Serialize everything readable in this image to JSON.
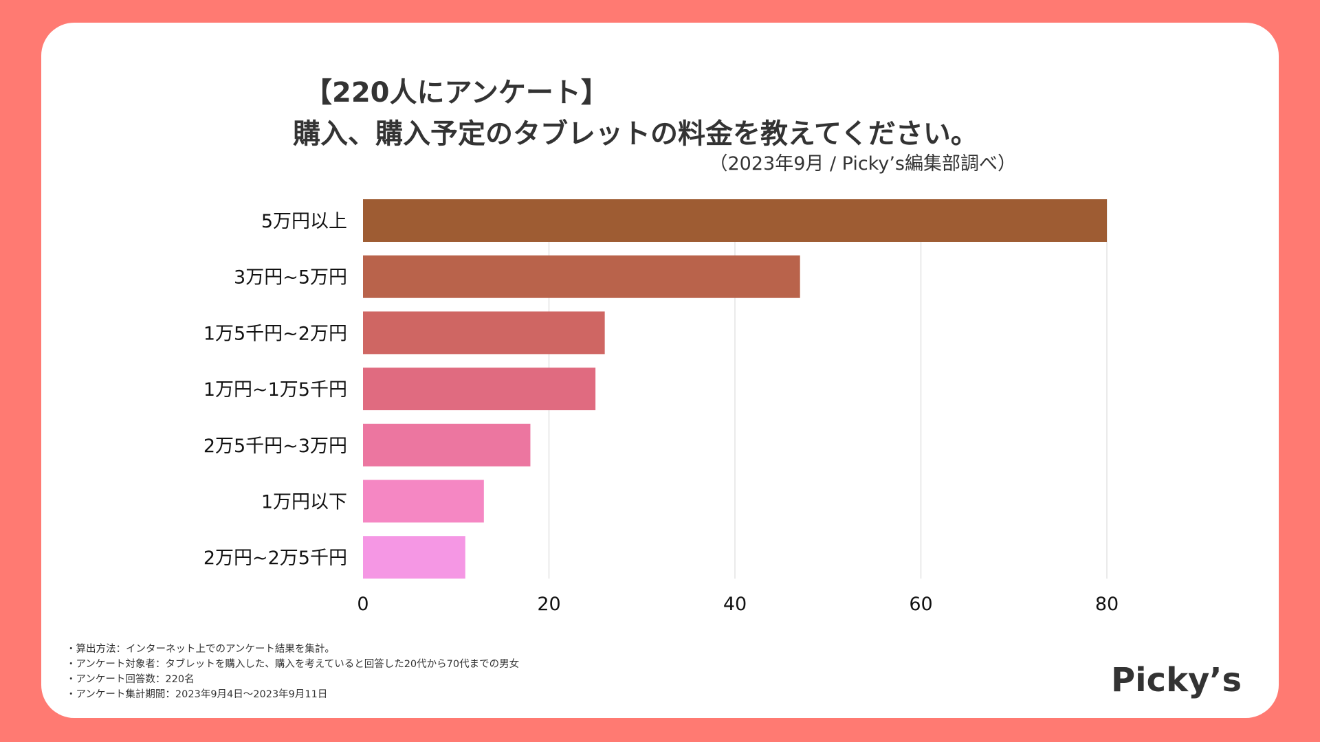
{
  "header": {
    "title_line1": "【220人にアンケート】",
    "title_line2": "購入、購入予定のタブレットの料金を教えてください。",
    "subtitle": "（2023年9月 / Picky’s編集部調べ）"
  },
  "chart_data": {
    "type": "bar",
    "orientation": "horizontal",
    "title": "購入、購入予定のタブレットの料金を教えてください。",
    "categories": [
      "5万円以上",
      "3万円~5万円",
      "1万5千円~2万円",
      "1万円~1万5千円",
      "2万5千円~3万円",
      "1万円以下",
      "2万円~2万5千円"
    ],
    "values": [
      80,
      47,
      26,
      25,
      18,
      13,
      11
    ],
    "colors": [
      "#9E5C33",
      "#B9634B",
      "#CF6663",
      "#E06B80",
      "#EC76A0",
      "#F587C3",
      "#F597E4"
    ],
    "xlabel": "",
    "ylabel": "",
    "xlim": [
      0,
      80
    ],
    "xticks": [
      0,
      20,
      40,
      60,
      80
    ],
    "xtick_labels": [
      "0",
      "20",
      "40",
      "60",
      "80"
    ],
    "grid": "vertical",
    "legend": "none"
  },
  "notes": [
    "・算出方法：インターネット上でのアンケート結果を集計。",
    "・アンケート対象者：タブレットを購入した、購入を考えていると回答した20代から70代までの男女",
    "・アンケート回答数：220名",
    "・アンケート集計期間：2023年9月4日〜2023年9月11日"
  ],
  "logo": {
    "text": "Picky’s"
  },
  "colors": {
    "background": "#FF7A72",
    "card": "#FFFFFF",
    "text": "#333333",
    "grid": "#E3E3E3"
  }
}
